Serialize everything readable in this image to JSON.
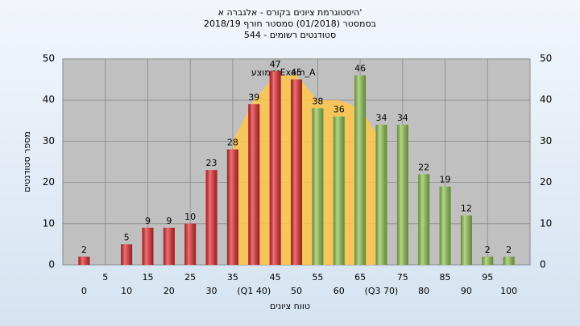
{
  "chart_data": {
    "type": "bar",
    "title": "היסטוגרמת ציונים בקורס - אלגברה א'",
    "subtitle": [
      "בסמסטר  (01/2018)  סמסטר חורף 2018/19",
      "544 - סטודנטים רשומים"
    ],
    "y_label": "מספר סטודנטים",
    "x_label": "טווח ציונים",
    "categories": [
      "0",
      "5",
      "10",
      "15",
      "20",
      "25",
      "30",
      "35",
      "(Q1 40)",
      "45",
      "50",
      "55",
      "60",
      "65",
      "(Q3 70)",
      "75",
      "80",
      "85",
      "90",
      "95",
      "100"
    ],
    "values": [
      2,
      null,
      5,
      9,
      9,
      10,
      23,
      28,
      39,
      47,
      45,
      38,
      36,
      46,
      34,
      34,
      22,
      19,
      12,
      2,
      2
    ],
    "colors": [
      "#e0262b",
      "#e0262b",
      "#e0262b",
      "#e0262b",
      "#e0262b",
      "#e0262b",
      "#e0262b",
      "#e0262b",
      "#e0262b",
      "#e0262b",
      "#e0262b",
      "#8cc04c",
      "#8cc04c",
      "#8cc04c",
      "#8cc04c",
      "#8cc04c",
      "#8cc04c",
      "#8cc04c",
      "#8cc04c",
      "#8cc04c",
      "#8cc04c"
    ],
    "area": {
      "name": "Exam_A",
      "color": "#ffc64a",
      "values": [
        null,
        null,
        null,
        null,
        null,
        null,
        null,
        30,
        40,
        46,
        46,
        40,
        40,
        38,
        30,
        null,
        null,
        null,
        null,
        null,
        null
      ]
    },
    "annotation": "בממוצע",
    "ylim": [
      0,
      50
    ],
    "yticks": [
      0,
      10,
      20,
      30,
      40,
      50
    ],
    "grid": true
  }
}
